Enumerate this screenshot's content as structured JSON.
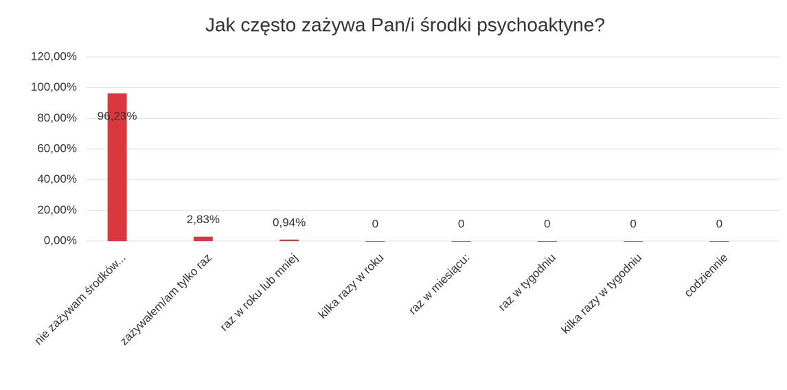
{
  "chart_data": {
    "type": "bar",
    "title": "Jak często zażywa Pan/i środki psychoaktyne?",
    "categories": [
      "nie zażywam środków...",
      "zażywałem/am tylko raz",
      "raz w roku lub mniej",
      "kilka razy w roku",
      "raz w miesiącu:",
      "raz w tygodniu",
      "kilka razy w tygodniu",
      "codziennie"
    ],
    "values": [
      96.23,
      2.83,
      0.94,
      0,
      0,
      0,
      0,
      0
    ],
    "value_labels": [
      "96,23%",
      "2,83%",
      "0,94%",
      "0",
      "0",
      "0",
      "0",
      "0"
    ],
    "color": "#d9383f",
    "ylim": [
      0,
      120
    ],
    "yticks": [
      {
        "value": 0,
        "label": "0,00%"
      },
      {
        "value": 20,
        "label": "20,00%"
      },
      {
        "value": 40,
        "label": "40,00%"
      },
      {
        "value": 60,
        "label": "60,00%"
      },
      {
        "value": 80,
        "label": "80,00%"
      },
      {
        "value": 100,
        "label": "100,00%"
      },
      {
        "value": 120,
        "label": "120,00%"
      }
    ],
    "grid": true
  }
}
